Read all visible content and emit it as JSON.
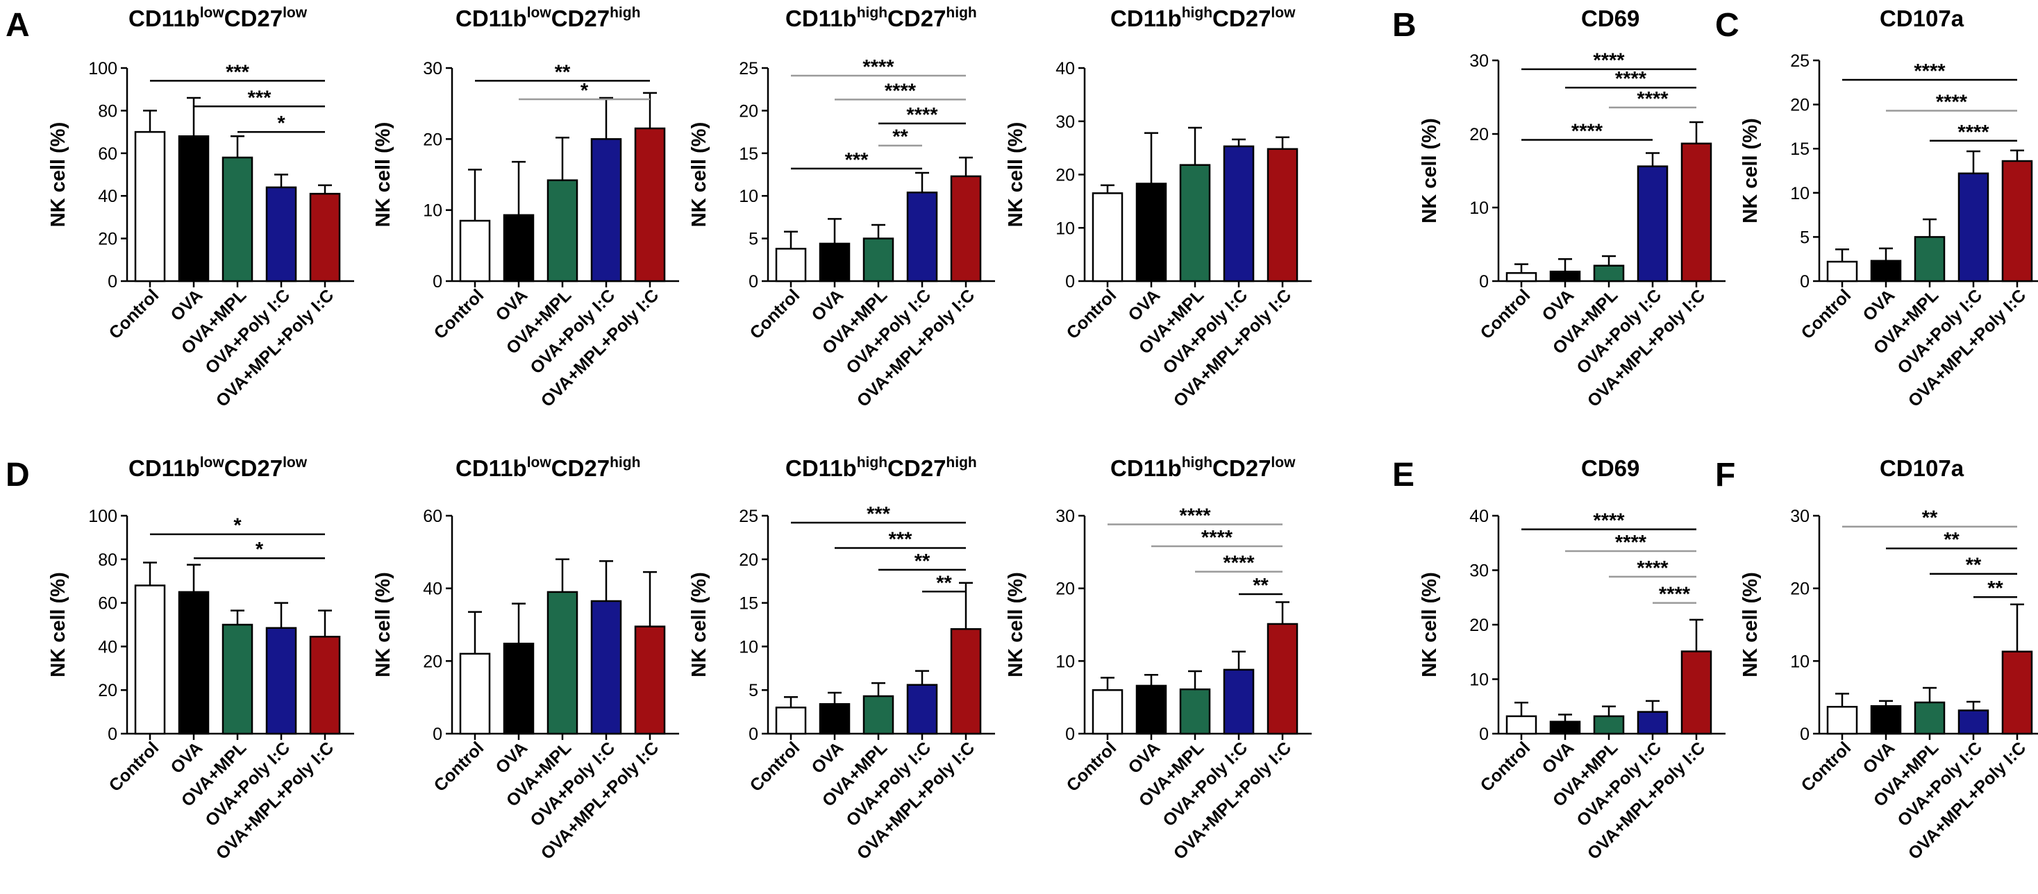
{
  "categories": [
    "Control",
    "OVA",
    "OVA+MPL",
    "OVA+Poly I:C",
    "OVA+MPL+Poly I:C"
  ],
  "colors": [
    "#ffffff",
    "#000000",
    "#1e6b4b",
    "#15168c",
    "#a10e12"
  ],
  "chart_data": [
    {
      "id": "A1",
      "type": "bar",
      "letter": "A",
      "title": {
        "parts": [
          {
            "t": "CD11b"
          },
          {
            "t": "low",
            "sup": true
          },
          {
            "t": "CD27"
          },
          {
            "t": "low",
            "sup": true
          }
        ]
      },
      "ylabel": "NK cell (%)",
      "ylim": [
        0,
        100
      ],
      "yticks": [
        0,
        20,
        40,
        60,
        80,
        100
      ],
      "values": [
        70,
        68,
        58,
        44,
        41
      ],
      "errors": [
        10,
        18,
        10,
        6,
        4
      ],
      "sig": [
        {
          "from": 0,
          "to": 4,
          "label": "***",
          "y": 94,
          "gray": false
        },
        {
          "from": 1,
          "to": 4,
          "label": "***",
          "y": 82,
          "gray": false
        },
        {
          "from": 2,
          "to": 4,
          "label": "*",
          "y": 70,
          "gray": false
        }
      ]
    },
    {
      "id": "A2",
      "type": "bar",
      "letter": "",
      "title": {
        "parts": [
          {
            "t": "CD11b"
          },
          {
            "t": "low",
            "sup": true
          },
          {
            "t": "CD27"
          },
          {
            "t": "high",
            "sup": true
          }
        ]
      },
      "ylabel": "NK cell (%)",
      "ylim": [
        0,
        30
      ],
      "yticks": [
        0,
        10,
        20,
        30
      ],
      "values": [
        8.5,
        9.3,
        14.2,
        20,
        21.5
      ],
      "errors": [
        7.2,
        7.5,
        6,
        5.8,
        5
      ],
      "sig": [
        {
          "from": 0,
          "to": 4,
          "label": "**",
          "y": 28.2,
          "gray": false
        },
        {
          "from": 1,
          "to": 4,
          "label": "*",
          "y": 25.6,
          "gray": true
        }
      ]
    },
    {
      "id": "A3",
      "type": "bar",
      "letter": "",
      "title": {
        "parts": [
          {
            "t": "CD11b"
          },
          {
            "t": "high",
            "sup": true
          },
          {
            "t": "CD27"
          },
          {
            "t": "high",
            "sup": true
          }
        ]
      },
      "ylabel": "NK cell (%)",
      "ylim": [
        0,
        25
      ],
      "yticks": [
        0,
        5,
        10,
        15,
        20,
        25
      ],
      "values": [
        3.8,
        4.4,
        5,
        10.4,
        12.3
      ],
      "errors": [
        2,
        2.9,
        1.6,
        2.3,
        2.2
      ],
      "sig": [
        {
          "from": 0,
          "to": 4,
          "label": "****",
          "y": 24.1,
          "gray": true
        },
        {
          "from": 1,
          "to": 4,
          "label": "****",
          "y": 21.3,
          "gray": true
        },
        {
          "from": 2,
          "to": 4,
          "label": "****",
          "y": 18.5,
          "gray": false
        },
        {
          "from": 2,
          "to": 3,
          "label": "**",
          "y": 15.9,
          "gray": true
        },
        {
          "from": 0,
          "to": 3,
          "label": "***",
          "y": 13.2,
          "gray": false
        }
      ]
    },
    {
      "id": "A4",
      "type": "bar",
      "letter": "",
      "title": {
        "parts": [
          {
            "t": "CD11b"
          },
          {
            "t": "high",
            "sup": true
          },
          {
            "t": "CD27"
          },
          {
            "t": "low",
            "sup": true
          }
        ]
      },
      "ylabel": "NK cell (%)",
      "ylim": [
        0,
        40
      ],
      "yticks": [
        0,
        10,
        20,
        30,
        40
      ],
      "values": [
        16.5,
        18.3,
        21.8,
        25.3,
        24.8
      ],
      "errors": [
        1.5,
        9.5,
        7,
        1.3,
        2.2
      ],
      "sig": []
    },
    {
      "id": "B",
      "type": "bar",
      "letter": "B",
      "title": {
        "parts": [
          {
            "t": "CD69"
          }
        ]
      },
      "ylabel": "NK cell (%)",
      "ylim": [
        0,
        30
      ],
      "yticks": [
        0,
        10,
        20,
        30
      ],
      "values": [
        1.1,
        1.3,
        2.1,
        15.6,
        18.7
      ],
      "errors": [
        1.2,
        1.7,
        1.3,
        1.8,
        2.9
      ],
      "sig": [
        {
          "from": 0,
          "to": 4,
          "label": "****",
          "y": 28.8,
          "gray": false
        },
        {
          "from": 1,
          "to": 4,
          "label": "****",
          "y": 26.3,
          "gray": false
        },
        {
          "from": 2,
          "to": 4,
          "label": "****",
          "y": 23.6,
          "gray": true
        },
        {
          "from": 0,
          "to": 3,
          "label": "****",
          "y": 19.2,
          "gray": false
        }
      ]
    },
    {
      "id": "C",
      "type": "bar",
      "letter": "C",
      "title": {
        "parts": [
          {
            "t": "CD107a"
          }
        ]
      },
      "ylabel": "NK cell (%)",
      "ylim": [
        0,
        25
      ],
      "yticks": [
        0,
        5,
        10,
        15,
        20,
        25
      ],
      "values": [
        2.2,
        2.3,
        5,
        12.2,
        13.6
      ],
      "errors": [
        1.4,
        1.4,
        2,
        2.5,
        1.2
      ],
      "sig": [
        {
          "from": 0,
          "to": 4,
          "label": "****",
          "y": 22.8,
          "gray": false
        },
        {
          "from": 1,
          "to": 4,
          "label": "****",
          "y": 19.3,
          "gray": true
        },
        {
          "from": 2,
          "to": 4,
          "label": "****",
          "y": 15.9,
          "gray": false
        }
      ]
    },
    {
      "id": "D1",
      "type": "bar",
      "letter": "D",
      "title": {
        "parts": [
          {
            "t": "CD11b"
          },
          {
            "t": "low",
            "sup": true
          },
          {
            "t": "CD27"
          },
          {
            "t": "low",
            "sup": true
          }
        ]
      },
      "ylabel": "NK cell (%)",
      "ylim": [
        0,
        100
      ],
      "yticks": [
        0,
        20,
        40,
        60,
        80,
        100
      ],
      "values": [
        68,
        65,
        50,
        48.5,
        44.5
      ],
      "errors": [
        10.5,
        12.5,
        6.5,
        11.5,
        12
      ],
      "sig": [
        {
          "from": 0,
          "to": 4,
          "label": "*",
          "y": 91.5,
          "gray": false
        },
        {
          "from": 1,
          "to": 4,
          "label": "*",
          "y": 80.5,
          "gray": false
        }
      ]
    },
    {
      "id": "D2",
      "type": "bar",
      "letter": "",
      "title": {
        "parts": [
          {
            "t": "CD11b"
          },
          {
            "t": "low",
            "sup": true
          },
          {
            "t": "CD27"
          },
          {
            "t": "high",
            "sup": true
          }
        ]
      },
      "ylabel": "NK cell (%)",
      "ylim": [
        0,
        60
      ],
      "yticks": [
        0,
        20,
        40,
        60
      ],
      "values": [
        22,
        24.8,
        39,
        36.5,
        29.5
      ],
      "errors": [
        11.5,
        11,
        9,
        11,
        15
      ],
      "sig": []
    },
    {
      "id": "D3",
      "type": "bar",
      "letter": "",
      "title": {
        "parts": [
          {
            "t": "CD11b"
          },
          {
            "t": "high",
            "sup": true
          },
          {
            "t": "CD27"
          },
          {
            "t": "high",
            "sup": true
          }
        ]
      },
      "ylabel": "NK cell (%)",
      "ylim": [
        0,
        25
      ],
      "yticks": [
        0,
        5,
        10,
        15,
        20,
        25
      ],
      "values": [
        3,
        3.4,
        4.3,
        5.6,
        12
      ],
      "errors": [
        1.2,
        1.3,
        1.5,
        1.6,
        5.3
      ],
      "sig": [
        {
          "from": 0,
          "to": 4,
          "label": "***",
          "y": 24.2,
          "gray": false
        },
        {
          "from": 1,
          "to": 4,
          "label": "***",
          "y": 21.3,
          "gray": false
        },
        {
          "from": 2,
          "to": 4,
          "label": "**",
          "y": 18.8,
          "gray": false
        },
        {
          "from": 3,
          "to": 4,
          "label": "**",
          "y": 16.3,
          "gray": false
        }
      ]
    },
    {
      "id": "D4",
      "type": "bar",
      "letter": "",
      "title": {
        "parts": [
          {
            "t": "CD11b"
          },
          {
            "t": "high",
            "sup": true
          },
          {
            "t": "CD27"
          },
          {
            "t": "low",
            "sup": true
          }
        ]
      },
      "ylabel": "NK cell (%)",
      "ylim": [
        0,
        30
      ],
      "yticks": [
        0,
        10,
        20,
        30
      ],
      "values": [
        6,
        6.6,
        6.1,
        8.8,
        15.1
      ],
      "errors": [
        1.7,
        1.5,
        2.5,
        2.5,
        3
      ],
      "sig": [
        {
          "from": 0,
          "to": 4,
          "label": "****",
          "y": 28.8,
          "gray": true
        },
        {
          "from": 1,
          "to": 4,
          "label": "****",
          "y": 25.8,
          "gray": true
        },
        {
          "from": 2,
          "to": 4,
          "label": "****",
          "y": 22.3,
          "gray": true
        },
        {
          "from": 3,
          "to": 4,
          "label": "**",
          "y": 19.2,
          "gray": false
        }
      ]
    },
    {
      "id": "E",
      "type": "bar",
      "letter": "E",
      "title": {
        "parts": [
          {
            "t": "CD69"
          }
        ]
      },
      "ylabel": "NK cell (%)",
      "ylim": [
        0,
        40
      ],
      "yticks": [
        0,
        10,
        20,
        30,
        40
      ],
      "values": [
        3.2,
        2.2,
        3.2,
        4,
        15.1
      ],
      "errors": [
        2.5,
        1.3,
        1.8,
        2,
        5.8
      ],
      "sig": [
        {
          "from": 0,
          "to": 4,
          "label": "****",
          "y": 37.5,
          "gray": false
        },
        {
          "from": 1,
          "to": 4,
          "label": "****",
          "y": 33.5,
          "gray": true
        },
        {
          "from": 2,
          "to": 4,
          "label": "****",
          "y": 28.8,
          "gray": true
        },
        {
          "from": 3,
          "to": 4,
          "label": "****",
          "y": 24,
          "gray": true
        }
      ]
    },
    {
      "id": "F",
      "type": "bar",
      "letter": "F",
      "title": {
        "parts": [
          {
            "t": "CD107a"
          }
        ]
      },
      "ylabel": "NK cell (%)",
      "ylim": [
        0,
        30
      ],
      "yticks": [
        0,
        10,
        20,
        30
      ],
      "values": [
        3.7,
        3.8,
        4.3,
        3.2,
        11.3
      ],
      "errors": [
        1.8,
        0.7,
        2,
        1.2,
        6.5
      ],
      "sig": [
        {
          "from": 0,
          "to": 4,
          "label": "**",
          "y": 28.5,
          "gray": true
        },
        {
          "from": 1,
          "to": 4,
          "label": "**",
          "y": 25.5,
          "gray": false
        },
        {
          "from": 2,
          "to": 4,
          "label": "**",
          "y": 22,
          "gray": false
        },
        {
          "from": 3,
          "to": 4,
          "label": "**",
          "y": 18.8,
          "gray": false
        }
      ]
    }
  ]
}
